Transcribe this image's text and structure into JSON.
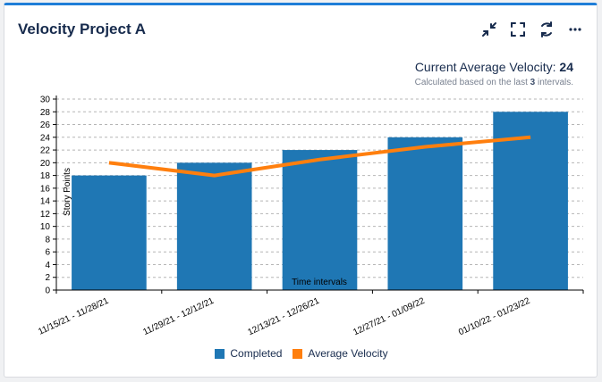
{
  "widget": {
    "title": "Velocity Project A",
    "toolbar": [
      {
        "name": "collapse-icon"
      },
      {
        "name": "fullscreen-icon"
      },
      {
        "name": "refresh-icon"
      },
      {
        "name": "more-icon"
      }
    ]
  },
  "summary": {
    "label": "Current Average Velocity:",
    "value": "24",
    "sub_prefix": "Calculated based on the last",
    "sub_count": "3",
    "sub_suffix": "intervals."
  },
  "colors": {
    "completed": "#1f77b4",
    "average": "#ff7f0e",
    "accent": "#1f7ed8"
  },
  "chart_data": {
    "type": "bar",
    "categories": [
      "11/15/21 - 11/28/21",
      "11/29/21 - 12/12/21",
      "12/13/21 - 12/26/21",
      "12/27/21 - 01/09/22",
      "01/10/22 - 01/23/22"
    ],
    "series": [
      {
        "name": "Completed",
        "type": "bar",
        "values": [
          18,
          20,
          22,
          24,
          28
        ]
      },
      {
        "name": "Average Velocity",
        "type": "line",
        "values": [
          20,
          18,
          20.5,
          22.5,
          24
        ]
      }
    ],
    "xlabel": "Time intervals",
    "ylabel": "Story Points",
    "ylim": [
      0,
      30
    ],
    "yticks": [
      0,
      2,
      4,
      6,
      8,
      10,
      12,
      14,
      16,
      18,
      20,
      22,
      24,
      26,
      28,
      30
    ],
    "grid": true,
    "legend": "bottom-center"
  }
}
